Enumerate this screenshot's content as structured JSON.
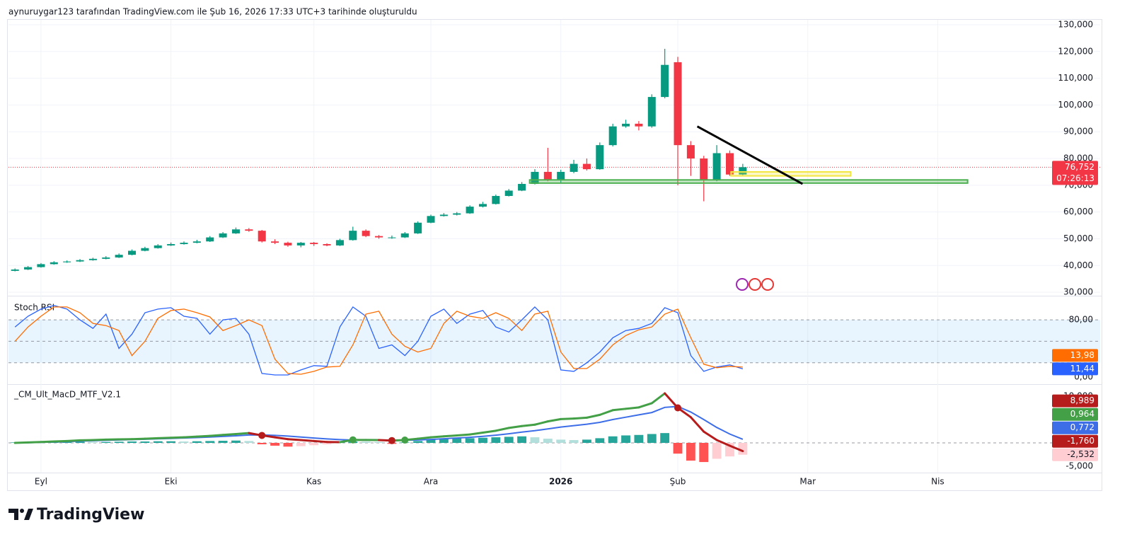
{
  "header": "aynuruygar123 tarafından TradingView.com ile Şub 16, 2026 17:33 UTC+3 tarihinde oluşturuldu",
  "footer": {
    "brand": "TradingView"
  },
  "chart_data": [
    {
      "type": "candlestick",
      "up_color": "#089981",
      "down_color": "#f23645",
      "grid": true,
      "xlim": [
        -0.5,
        83.5
      ],
      "xticks": [
        {
          "value": 2,
          "label": "Eyl"
        },
        {
          "value": 12,
          "label": "Eki"
        },
        {
          "value": 23,
          "label": "Kas"
        },
        {
          "value": 32,
          "label": "Ara"
        },
        {
          "value": 42,
          "label": "2026",
          "bold": true
        },
        {
          "value": 51,
          "label": "Şub"
        },
        {
          "value": 61,
          "label": "Mar"
        },
        {
          "value": 71,
          "label": "Nis"
        }
      ],
      "ylim": [
        28700,
        131850
      ],
      "yticks": [
        {
          "value": 30000,
          "label": "30,000"
        },
        {
          "value": 40000,
          "label": "40,000"
        },
        {
          "value": 50000,
          "label": "50,000"
        },
        {
          "value": 60000,
          "label": "60,000"
        },
        {
          "value": 70000,
          "label": "70,000"
        },
        {
          "value": 80000,
          "label": "80,000"
        },
        {
          "value": 90000,
          "label": "90,000"
        },
        {
          "value": 100000,
          "label": "100,000"
        },
        {
          "value": 110000,
          "label": "110,000"
        },
        {
          "value": 120000,
          "label": "120,000"
        },
        {
          "value": 130000,
          "label": "130,000"
        }
      ],
      "open": [
        38000,
        38500,
        39400,
        40500,
        41200,
        41500,
        42000,
        42500,
        43000,
        44000,
        45500,
        46500,
        47500,
        48000,
        48500,
        49000,
        50500,
        52000,
        53500,
        53000,
        49000,
        48500,
        47500,
        48500,
        48000,
        47500,
        49500,
        53000,
        51000,
        50500,
        50500,
        52000,
        56000,
        58500,
        59000,
        59500,
        62000,
        63000,
        66000,
        68000,
        70500,
        75000,
        72000,
        75000,
        78000,
        76000,
        85000,
        92000,
        93000,
        92000,
        103000,
        116000,
        85000,
        80000,
        72000,
        82000,
        74000
      ],
      "high": [
        38900,
        39800,
        40900,
        41600,
        41900,
        42400,
        42900,
        43500,
        44500,
        46000,
        47000,
        48000,
        48600,
        49000,
        49600,
        51000,
        52500,
        54200,
        54000,
        53300,
        49800,
        48900,
        48800,
        48800,
        48300,
        50000,
        54500,
        53500,
        51400,
        51200,
        52500,
        56500,
        59000,
        59600,
        60000,
        62500,
        63800,
        66500,
        68600,
        71200,
        76000,
        84000,
        75800,
        79500,
        80000,
        86000,
        93000,
        94500,
        94000,
        104000,
        121000,
        118000,
        86500,
        81000,
        85000,
        83000,
        78000
      ],
      "low": [
        37800,
        38300,
        39200,
        40300,
        41000,
        41300,
        41800,
        42300,
        42800,
        43800,
        45300,
        46300,
        47300,
        47800,
        48300,
        48800,
        50300,
        51800,
        52600,
        48600,
        48000,
        47000,
        46800,
        47300,
        47200,
        47300,
        49300,
        50600,
        50000,
        50000,
        50300,
        51800,
        55800,
        58300,
        58700,
        59300,
        61700,
        62800,
        65800,
        67800,
        70300,
        71500,
        71000,
        74500,
        75500,
        75800,
        84500,
        91500,
        90500,
        91500,
        102500,
        70000,
        73500,
        64000,
        71500,
        73500,
        73800
      ],
      "close": [
        38500,
        39400,
        40500,
        41200,
        41500,
        42000,
        42500,
        43000,
        44000,
        45500,
        46500,
        47500,
        48000,
        48500,
        49000,
        50500,
        52000,
        53500,
        53000,
        49000,
        48500,
        47500,
        48500,
        48000,
        47500,
        49500,
        53000,
        51000,
        50500,
        50500,
        52000,
        56000,
        58500,
        59000,
        59500,
        62000,
        63000,
        66000,
        68000,
        70500,
        75000,
        72000,
        75000,
        78000,
        76000,
        85000,
        92000,
        93000,
        92000,
        103000,
        115000,
        85000,
        80000,
        72000,
        82000,
        74000,
        76752
      ],
      "last_price": {
        "value": 76752,
        "label": "76,752"
      },
      "countdown": "07:26:13",
      "last_color": "#f23645",
      "trendline": {
        "x": [
          52.5,
          60.6
        ],
        "y": [
          92000,
          70500
        ],
        "color": "#000000"
      },
      "zones": [
        {
          "x": [
            55.1,
            64.3
          ],
          "y": [
            73500,
            75000
          ],
          "color": "#f2e641"
        },
        {
          "x": [
            39.6,
            73.3
          ],
          "y": [
            70800,
            72000
          ],
          "color": "#4caf50"
        }
      ]
    },
    {
      "type": "line",
      "title": "Stoch RSI",
      "ylim": [
        -8.9,
        111.7
      ],
      "yticks": [
        {
          "value": 80,
          "label": "80,00"
        },
        {
          "value": 0,
          "label": "0,00"
        }
      ],
      "bands": [
        80,
        50,
        20
      ],
      "band_color": "#2196f3",
      "series": [
        {
          "color": "#2962ff",
          "last_label": "11,44",
          "values": [
            70,
            85,
            95,
            100,
            95,
            80,
            68,
            88,
            40,
            60,
            90,
            95,
            97,
            85,
            82,
            60,
            80,
            82,
            60,
            5,
            3,
            3,
            10,
            16,
            15,
            70,
            98,
            85,
            40,
            45,
            30,
            50,
            85,
            95,
            75,
            88,
            93,
            70,
            63,
            80,
            98,
            80,
            10,
            8,
            20,
            35,
            55,
            65,
            68,
            75,
            97,
            90,
            30,
            8,
            14,
            17,
            11.44
          ]
        },
        {
          "color": "#ff6d00",
          "last_label": "13,98",
          "values": [
            50,
            70,
            85,
            98,
            98,
            90,
            75,
            72,
            65,
            30,
            50,
            82,
            93,
            95,
            90,
            84,
            65,
            72,
            80,
            72,
            25,
            5,
            4,
            8,
            14,
            15,
            45,
            88,
            92,
            60,
            43,
            35,
            40,
            75,
            92,
            85,
            82,
            90,
            82,
            65,
            88,
            92,
            35,
            12,
            12,
            25,
            45,
            58,
            66,
            70,
            88,
            95,
            55,
            18,
            13,
            15,
            13.98
          ]
        }
      ]
    },
    {
      "type": "macd",
      "title": "_CM_Ult_MacD_MTF_V2.1",
      "ylim": [
        -6.36,
        12.27
      ],
      "yticks": [
        {
          "value": 10,
          "label": "10,000"
        },
        {
          "value": -5,
          "label": "-5,000"
        }
      ],
      "macd": {
        "up_color": "#43a047",
        "down_color": "#b71c1c",
        "values": [
          0,
          0.1,
          0.2,
          0.3,
          0.4,
          0.55,
          0.6,
          0.7,
          0.75,
          0.8,
          0.9,
          1.0,
          1.1,
          1.2,
          1.35,
          1.5,
          1.7,
          1.9,
          2.1,
          1.6,
          1.2,
          0.8,
          0.6,
          0.4,
          0.2,
          0.15,
          0.65,
          0.62,
          0.6,
          0.5,
          0.6,
          0.9,
          1.2,
          1.4,
          1.6,
          1.8,
          2.2,
          2.6,
          3.2,
          3.6,
          3.9,
          4.6,
          5.1,
          5.2,
          5.4,
          6.0,
          7.0,
          7.3,
          7.6,
          8.5,
          10.6,
          7.5,
          5.5,
          2.4,
          0.6,
          -0.6,
          -1.76
        ]
      },
      "signal": {
        "color": "#3d6ee8",
        "values": [
          0,
          0.05,
          0.12,
          0.2,
          0.28,
          0.38,
          0.45,
          0.55,
          0.62,
          0.7,
          0.78,
          0.86,
          0.95,
          1.04,
          1.14,
          1.25,
          1.38,
          1.52,
          1.68,
          1.7,
          1.6,
          1.45,
          1.25,
          1.05,
          0.85,
          0.7,
          0.6,
          0.58,
          0.56,
          0.55,
          0.56,
          0.63,
          0.75,
          0.9,
          1.05,
          1.2,
          1.4,
          1.65,
          1.95,
          2.3,
          2.6,
          3.0,
          3.4,
          3.7,
          4.0,
          4.4,
          5.0,
          5.5,
          6.0,
          6.5,
          7.6,
          7.8,
          6.6,
          5.0,
          3.3,
          1.9,
          0.772
        ]
      },
      "histogram": {
        "colors": [
          "#26a69a",
          "#b2dfdb",
          "#ff5252",
          "#ffcdd2"
        ],
        "values": [
          0.1,
          0.15,
          0.15,
          0.2,
          0.2,
          0.25,
          0.2,
          0.2,
          0.25,
          0.3,
          0.3,
          0.35,
          0.35,
          0.3,
          0.35,
          0.4,
          0.45,
          0.5,
          0.4,
          -0.3,
          -0.6,
          -0.8,
          -0.7,
          -0.5,
          -0.3,
          0.15,
          0.3,
          0.25,
          0.2,
          -0.2,
          0.1,
          0.4,
          0.8,
          0.9,
          1.0,
          1.0,
          1.1,
          1.2,
          1.3,
          1.4,
          1.2,
          0.9,
          0.7,
          0.6,
          0.7,
          1.0,
          1.4,
          1.6,
          1.7,
          1.9,
          2.1,
          -2.3,
          -3.8,
          -4.1,
          -3.4,
          -2.9,
          -2.532
        ]
      },
      "readouts": [
        {
          "value": 8.989,
          "label": "8,989",
          "color": "#b71c1c"
        },
        {
          "value": 0.964,
          "label": "0,964",
          "color": "#43a047"
        },
        {
          "value": 0.772,
          "label": "0,772",
          "color": "#3d6ee8"
        },
        {
          "value": -1.76,
          "label": "-1,760",
          "color": "#b71c1c"
        },
        {
          "value": -2.532,
          "label": "-2,532",
          "color": "#ffcdd2"
        }
      ]
    }
  ]
}
